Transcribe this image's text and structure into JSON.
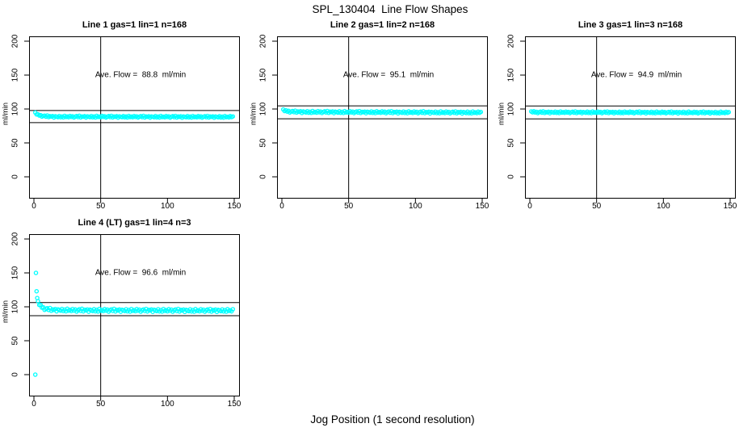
{
  "figure": {
    "title": "SPL_130404  Line Flow Shapes",
    "xlabel": "Jog Position (1 second resolution)"
  },
  "colors": {
    "points": "#00FFFF",
    "axis": "#000000",
    "background": "#FFFFFF",
    "text": "#000000"
  },
  "marker": {
    "shape": "open-circle",
    "radius": 2.1,
    "stroke_width": 1.3
  },
  "jitter": [
    0.2,
    -0.7,
    1.0,
    -0.3,
    0.6,
    -1.1,
    0.1,
    0.8,
    -0.5,
    1.2,
    -0.9,
    0.4,
    -0.1,
    0.7,
    -1.2,
    0.5,
    0.0,
    -0.6,
    0.9,
    -0.8,
    0.3,
    -1.0,
    1.1,
    -0.4
  ],
  "chart_data": [
    {
      "type": "scatter",
      "title": "Line 1 gas=1 lin=1 n=168",
      "annotation": "Ave. Flow =  88.8  ml/min",
      "ave_flow": 88.8,
      "n": 168,
      "ylabel": "ml/min",
      "x_ticks": [
        0,
        50,
        100,
        150
      ],
      "y_ticks": [
        0,
        50,
        100,
        150,
        200
      ],
      "xlim": [
        0,
        150
      ],
      "ylim": [
        0,
        200
      ],
      "vline_x": 50,
      "ref_lines": [
        97.7,
        79.9
      ],
      "series": {
        "x_start": 1,
        "x_step": 1,
        "count": 149,
        "jitter_scale": 1.1,
        "anchors": [
          [
            1,
            94.5
          ],
          [
            3,
            91.0
          ],
          [
            8,
            89.3
          ],
          [
            15,
            88.7
          ],
          [
            149,
            88.4
          ]
        ]
      },
      "outliers": []
    },
    {
      "type": "scatter",
      "title": "Line 2 gas=1 lin=2 n=168",
      "annotation": "Ave. Flow =  95.1  ml/min",
      "ave_flow": 95.1,
      "n": 168,
      "ylabel": "ml/min",
      "x_ticks": [
        0,
        50,
        100,
        150
      ],
      "y_ticks": [
        0,
        50,
        100,
        150,
        200
      ],
      "xlim": [
        0,
        150
      ],
      "ylim": [
        0,
        200
      ],
      "vline_x": 50,
      "ref_lines": [
        104.6,
        85.6
      ],
      "series": {
        "x_start": 1,
        "x_step": 1,
        "count": 149,
        "jitter_scale": 1.3,
        "anchors": [
          [
            1,
            99.0
          ],
          [
            3,
            96.8
          ],
          [
            8,
            96.0
          ],
          [
            20,
            95.6
          ],
          [
            149,
            94.8
          ]
        ]
      },
      "outliers": []
    },
    {
      "type": "scatter",
      "title": "Line 3 gas=1 lin=3 n=168",
      "annotation": "Ave. Flow =  94.9  ml/min",
      "ave_flow": 94.9,
      "n": 168,
      "ylabel": "ml/min",
      "x_ticks": [
        0,
        50,
        100,
        150
      ],
      "y_ticks": [
        0,
        50,
        100,
        150,
        200
      ],
      "xlim": [
        0,
        150
      ],
      "ylim": [
        0,
        200
      ],
      "vline_x": 50,
      "ref_lines": [
        104.4,
        85.4
      ],
      "series": {
        "x_start": 1,
        "x_step": 1,
        "count": 149,
        "jitter_scale": 1.1,
        "anchors": [
          [
            1,
            96.2
          ],
          [
            4,
            95.2
          ],
          [
            149,
            94.7
          ]
        ]
      },
      "outliers": []
    },
    {
      "type": "scatter",
      "title": "Line 4 (LT) gas=1 lin=4 n=3",
      "annotation": "Ave. Flow =  96.6  ml/min",
      "ave_flow": 96.6,
      "n": 3,
      "ylabel": "ml/min",
      "x_ticks": [
        0,
        50,
        100,
        150
      ],
      "y_ticks": [
        0,
        50,
        100,
        150,
        200
      ],
      "xlim": [
        0,
        150
      ],
      "ylim": [
        0,
        200
      ],
      "vline_x": 50,
      "ref_lines": [
        106.3,
        86.9
      ],
      "series": {
        "x_start": 3,
        "x_step": 1,
        "count": 147,
        "jitter_scale": 1.8,
        "anchors": [
          [
            3,
            108
          ],
          [
            4,
            104
          ],
          [
            5,
            101
          ],
          [
            6,
            99.3
          ],
          [
            7,
            98.2
          ],
          [
            8,
            97.4
          ],
          [
            10,
            96.4
          ],
          [
            14,
            95.6
          ],
          [
            30,
            95.0
          ],
          [
            80,
            94.8
          ],
          [
            149,
            94.6
          ]
        ]
      },
      "outliers": [
        [
          1,
          0
        ],
        [
          1.5,
          150
        ],
        [
          2,
          123
        ],
        [
          2.5,
          113
        ]
      ]
    }
  ]
}
